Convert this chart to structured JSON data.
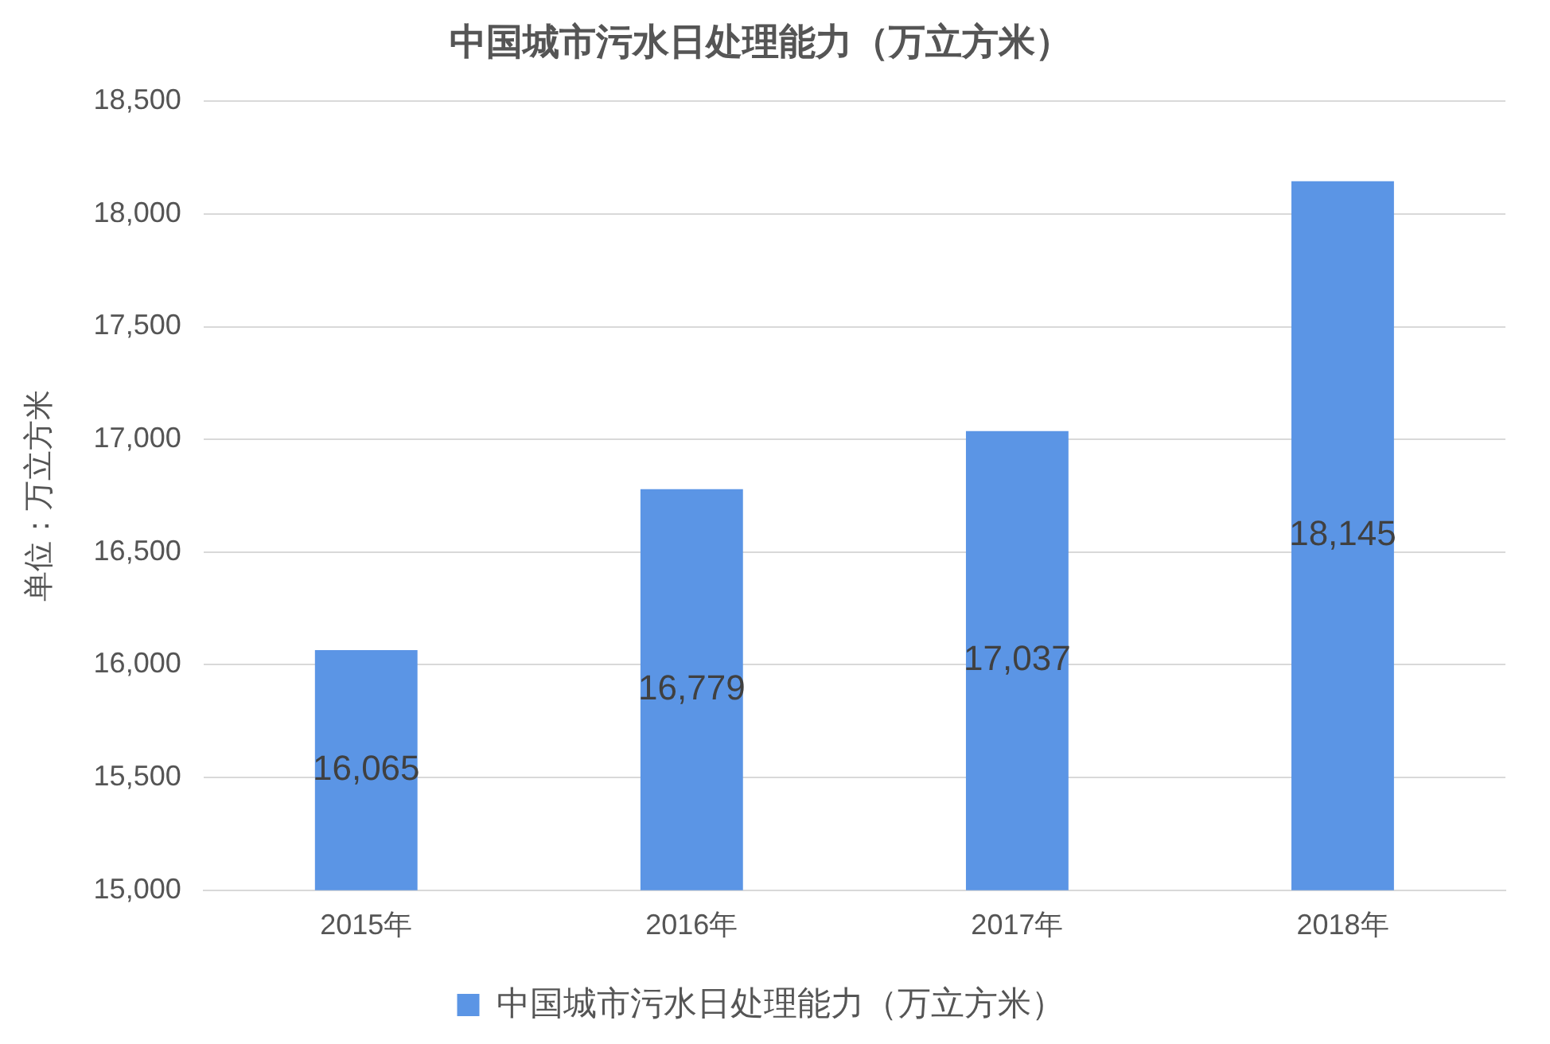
{
  "chart_data": {
    "type": "bar",
    "title": "中国城市污水日处理能力（万立方米）",
    "ylabel": "单位：万立方米",
    "categories": [
      "2015年",
      "2016年",
      "2017年",
      "2018年"
    ],
    "series": [
      {
        "name": "中国城市污水日处理能力（万立方米）",
        "color": "#5b95e5",
        "values": [
          16065,
          16779,
          17037,
          18145
        ],
        "value_labels": [
          "16,065",
          "16,779",
          "17,037",
          "18,145"
        ]
      }
    ],
    "ylim": [
      15000,
      18500
    ],
    "yticks": [
      {
        "value": 15000,
        "label": "15,000"
      },
      {
        "value": 15500,
        "label": "15,500"
      },
      {
        "value": 16000,
        "label": "16,000"
      },
      {
        "value": 16500,
        "label": "16,500"
      },
      {
        "value": 17000,
        "label": "17,000"
      },
      {
        "value": 17500,
        "label": "17,500"
      },
      {
        "value": 18000,
        "label": "18,000"
      },
      {
        "value": 18500,
        "label": "18,500"
      }
    ],
    "grid": "y",
    "legend": "bottom"
  }
}
